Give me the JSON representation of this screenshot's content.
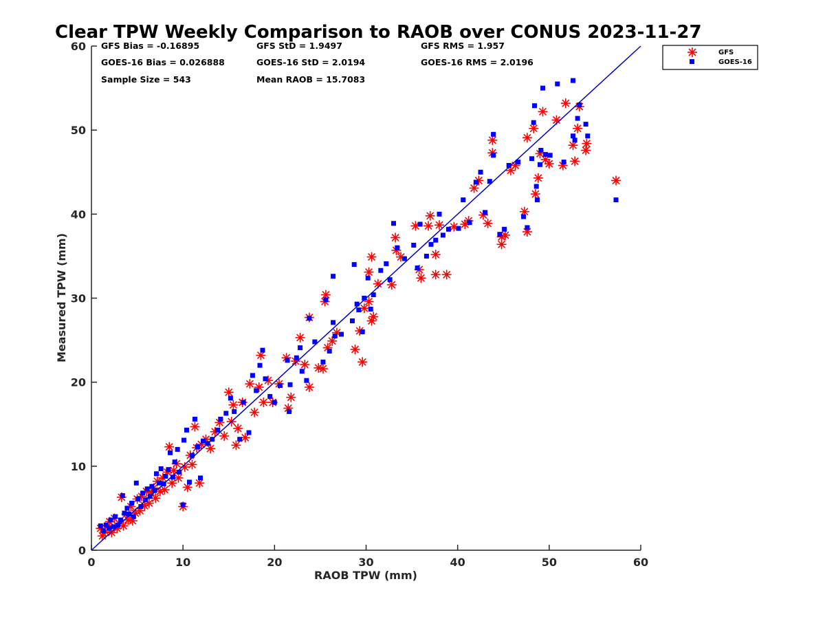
{
  "chart_data": {
    "type": "scatter",
    "title": "Clear TPW Weekly Comparison to RAOB over CONUS 2023-11-27",
    "xlabel": "RAOB TPW (mm)",
    "ylabel": "Measured TPW (mm)",
    "xlim": [
      0,
      60
    ],
    "ylim": [
      0,
      60
    ],
    "xticks": [
      "0",
      "10",
      "20",
      "30",
      "40",
      "50",
      "60"
    ],
    "yticks": [
      "0",
      "10",
      "20",
      "30",
      "40",
      "50",
      "60"
    ],
    "grid": false,
    "legend_position": "top-right outside",
    "stats": [
      "GFS Bias = -0.16895",
      "GFS StD = 1.9497",
      "GFS RMS = 1.957",
      "GOES-16 Bias = 0.026888",
      "GOES-16 StD = 2.0194",
      "GOES-16 RMS = 2.0196",
      "Sample Size = 543",
      "Mean RAOB = 15.7083"
    ],
    "reference_line": {
      "x": [
        0,
        60
      ],
      "y": [
        0,
        60
      ],
      "color": "#0000cc"
    },
    "series": [
      {
        "name": "GFS",
        "marker": "asterisk",
        "color": "#ff0000",
        "points": [
          [
            1.0,
            2.6
          ],
          [
            1.2,
            1.7
          ],
          [
            1.5,
            2.2
          ],
          [
            1.8,
            2.9
          ],
          [
            2.0,
            3.4
          ],
          [
            2.2,
            2.1
          ],
          [
            2.5,
            3.8
          ],
          [
            2.8,
            2.6
          ],
          [
            3.0,
            3.2
          ],
          [
            3.3,
            6.3
          ],
          [
            3.5,
            2.9
          ],
          [
            3.8,
            4.3
          ],
          [
            4.0,
            3.6
          ],
          [
            4.3,
            5.2
          ],
          [
            4.5,
            3.5
          ],
          [
            4.8,
            4.4
          ],
          [
            5.0,
            6.1
          ],
          [
            5.3,
            4.7
          ],
          [
            5.5,
            6.4
          ],
          [
            5.8,
            5.3
          ],
          [
            6.0,
            7.0
          ],
          [
            6.3,
            5.6
          ],
          [
            6.5,
            6.9
          ],
          [
            6.8,
            7.4
          ],
          [
            7.0,
            6.2
          ],
          [
            7.2,
            8.2
          ],
          [
            7.5,
            7.0
          ],
          [
            7.8,
            8.6
          ],
          [
            8.0,
            7.2
          ],
          [
            8.3,
            9.3
          ],
          [
            8.5,
            12.3
          ],
          [
            8.8,
            8.0
          ],
          [
            9.0,
            9.5
          ],
          [
            9.3,
            10.3
          ],
          [
            9.5,
            8.6
          ],
          [
            10.0,
            5.2
          ],
          [
            10.2,
            9.9
          ],
          [
            10.5,
            7.5
          ],
          [
            10.8,
            11.3
          ],
          [
            11.0,
            10.2
          ],
          [
            11.3,
            14.7
          ],
          [
            11.5,
            12.2
          ],
          [
            11.8,
            8.0
          ],
          [
            12.0,
            12.6
          ],
          [
            12.5,
            13.2
          ],
          [
            13.0,
            12.1
          ],
          [
            13.5,
            14.1
          ],
          [
            14.0,
            15.2
          ],
          [
            14.5,
            13.6
          ],
          [
            15.0,
            18.8
          ],
          [
            15.3,
            15.3
          ],
          [
            15.5,
            17.3
          ],
          [
            15.8,
            12.5
          ],
          [
            16.0,
            14.5
          ],
          [
            16.5,
            17.6
          ],
          [
            16.8,
            13.4
          ],
          [
            17.3,
            19.8
          ],
          [
            17.8,
            16.4
          ],
          [
            18.3,
            19.4
          ],
          [
            18.5,
            23.2
          ],
          [
            18.8,
            17.6
          ],
          [
            19.3,
            20.2
          ],
          [
            19.8,
            17.6
          ],
          [
            20.5,
            19.8
          ],
          [
            21.3,
            22.9
          ],
          [
            21.8,
            18.2
          ],
          [
            21.5,
            16.9
          ],
          [
            22.3,
            22.5
          ],
          [
            22.8,
            25.3
          ],
          [
            23.3,
            22.1
          ],
          [
            23.8,
            19.4
          ],
          [
            23.8,
            27.7
          ],
          [
            24.8,
            21.7
          ],
          [
            25.3,
            21.6
          ],
          [
            25.8,
            24.1
          ],
          [
            26.3,
            24.9
          ],
          [
            26.8,
            25.9
          ],
          [
            25.5,
            29.6
          ],
          [
            25.6,
            30.4
          ],
          [
            28.8,
            23.9
          ],
          [
            29.3,
            26.1
          ],
          [
            29.6,
            22.4
          ],
          [
            29.8,
            28.8
          ],
          [
            30.3,
            29.6
          ],
          [
            30.3,
            33.1
          ],
          [
            30.6,
            27.3
          ],
          [
            30.8,
            27.8
          ],
          [
            30.6,
            34.9
          ],
          [
            31.3,
            31.7
          ],
          [
            32.8,
            31.6
          ],
          [
            33.2,
            37.2
          ],
          [
            33.3,
            35.7
          ],
          [
            33.8,
            34.9
          ],
          [
            35.4,
            38.6
          ],
          [
            35.8,
            33.4
          ],
          [
            36.0,
            32.4
          ],
          [
            36.8,
            38.6
          ],
          [
            37.0,
            39.8
          ],
          [
            37.6,
            35.2
          ],
          [
            38.0,
            38.7
          ],
          [
            37.6,
            32.8
          ],
          [
            38.8,
            32.8
          ],
          [
            39.6,
            38.5
          ],
          [
            40.8,
            38.8
          ],
          [
            41.2,
            39.2
          ],
          [
            41.8,
            43.1
          ],
          [
            42.3,
            44.0
          ],
          [
            42.8,
            39.9
          ],
          [
            43.3,
            38.9
          ],
          [
            43.8,
            47.3
          ],
          [
            43.8,
            48.8
          ],
          [
            44.8,
            36.4
          ],
          [
            44.8,
            37.3
          ],
          [
            45.2,
            37.5
          ],
          [
            45.8,
            45.2
          ],
          [
            46.3,
            45.8
          ],
          [
            47.3,
            40.3
          ],
          [
            47.6,
            49.1
          ],
          [
            47.6,
            37.9
          ],
          [
            48.3,
            50.2
          ],
          [
            48.5,
            42.4
          ],
          [
            48.8,
            44.3
          ],
          [
            49.0,
            47.2
          ],
          [
            49.3,
            52.2
          ],
          [
            49.6,
            46.5
          ],
          [
            50.0,
            46.0
          ],
          [
            50.8,
            51.2
          ],
          [
            51.5,
            45.8
          ],
          [
            51.8,
            53.2
          ],
          [
            52.6,
            48.2
          ],
          [
            52.8,
            46.3
          ],
          [
            53.1,
            50.2
          ],
          [
            53.3,
            52.8
          ],
          [
            54.0,
            47.6
          ],
          [
            54.1,
            48.4
          ],
          [
            57.3,
            44.0
          ]
        ]
      },
      {
        "name": "GOES-16",
        "marker": "square",
        "color": "#0000ff",
        "points": [
          [
            1.0,
            2.9
          ],
          [
            1.3,
            2.3
          ],
          [
            1.6,
            3.0
          ],
          [
            1.9,
            2.6
          ],
          [
            2.1,
            3.6
          ],
          [
            2.4,
            2.8
          ],
          [
            2.6,
            4.0
          ],
          [
            2.9,
            3.0
          ],
          [
            3.2,
            3.6
          ],
          [
            3.4,
            6.5
          ],
          [
            3.6,
            4.4
          ],
          [
            3.9,
            5.0
          ],
          [
            4.1,
            4.3
          ],
          [
            4.4,
            5.6
          ],
          [
            4.6,
            4.0
          ],
          [
            4.9,
            8.0
          ],
          [
            5.1,
            6.1
          ],
          [
            5.4,
            5.2
          ],
          [
            5.6,
            6.8
          ],
          [
            5.9,
            6.0
          ],
          [
            6.1,
            7.3
          ],
          [
            6.4,
            6.4
          ],
          [
            6.6,
            7.6
          ],
          [
            6.9,
            7.1
          ],
          [
            7.1,
            9.1
          ],
          [
            7.4,
            8.0
          ],
          [
            7.6,
            9.7
          ],
          [
            7.9,
            7.9
          ],
          [
            8.1,
            8.8
          ],
          [
            8.4,
            9.6
          ],
          [
            8.6,
            11.6
          ],
          [
            8.9,
            8.7
          ],
          [
            9.1,
            10.5
          ],
          [
            9.4,
            12.0
          ],
          [
            9.6,
            9.3
          ],
          [
            10.0,
            5.4
          ],
          [
            10.1,
            13.1
          ],
          [
            10.4,
            14.3
          ],
          [
            10.7,
            8.1
          ],
          [
            11.0,
            11.3
          ],
          [
            11.3,
            15.6
          ],
          [
            11.6,
            12.3
          ],
          [
            11.9,
            8.6
          ],
          [
            12.2,
            13.0
          ],
          [
            12.7,
            12.7
          ],
          [
            13.2,
            13.2
          ],
          [
            13.8,
            14.3
          ],
          [
            14.1,
            15.6
          ],
          [
            14.7,
            16.3
          ],
          [
            15.2,
            18.1
          ],
          [
            15.6,
            16.5
          ],
          [
            16.2,
            13.2
          ],
          [
            16.6,
            17.6
          ],
          [
            17.2,
            14.0
          ],
          [
            17.6,
            20.8
          ],
          [
            18.0,
            19.0
          ],
          [
            18.4,
            22.0
          ],
          [
            18.7,
            23.8
          ],
          [
            19.0,
            20.4
          ],
          [
            19.5,
            18.3
          ],
          [
            20.0,
            17.6
          ],
          [
            20.6,
            19.6
          ],
          [
            21.4,
            22.6
          ],
          [
            21.6,
            16.5
          ],
          [
            21.7,
            19.7
          ],
          [
            22.4,
            22.9
          ],
          [
            22.8,
            24.1
          ],
          [
            23.0,
            21.3
          ],
          [
            23.5,
            20.2
          ],
          [
            23.8,
            27.6
          ],
          [
            24.4,
            24.8
          ],
          [
            25.3,
            22.4
          ],
          [
            25.6,
            29.8
          ],
          [
            26.0,
            23.7
          ],
          [
            26.4,
            32.6
          ],
          [
            26.4,
            27.1
          ],
          [
            26.6,
            25.5
          ],
          [
            27.3,
            25.7
          ],
          [
            28.5,
            27.3
          ],
          [
            28.7,
            34.0
          ],
          [
            29.0,
            29.3
          ],
          [
            29.2,
            28.6
          ],
          [
            29.6,
            26.0
          ],
          [
            29.8,
            30.0
          ],
          [
            30.2,
            32.4
          ],
          [
            30.5,
            28.7
          ],
          [
            30.8,
            30.4
          ],
          [
            31.6,
            33.3
          ],
          [
            32.2,
            34.1
          ],
          [
            32.6,
            32.2
          ],
          [
            33.0,
            38.9
          ],
          [
            33.4,
            36.0
          ],
          [
            34.2,
            34.7
          ],
          [
            35.2,
            36.3
          ],
          [
            35.6,
            33.6
          ],
          [
            35.9,
            38.8
          ],
          [
            36.6,
            35.0
          ],
          [
            37.1,
            36.4
          ],
          [
            37.6,
            36.9
          ],
          [
            38.0,
            40.0
          ],
          [
            38.4,
            37.5
          ],
          [
            39.0,
            38.2
          ],
          [
            40.1,
            38.3
          ],
          [
            40.6,
            41.7
          ],
          [
            41.3,
            39.0
          ],
          [
            42.0,
            43.8
          ],
          [
            42.5,
            45.0
          ],
          [
            43.0,
            40.2
          ],
          [
            43.5,
            43.9
          ],
          [
            43.9,
            47.0
          ],
          [
            43.9,
            49.5
          ],
          [
            44.6,
            37.6
          ],
          [
            45.1,
            38.2
          ],
          [
            45.6,
            45.8
          ],
          [
            46.6,
            46.2
          ],
          [
            47.2,
            39.7
          ],
          [
            47.6,
            38.4
          ],
          [
            48.1,
            46.6
          ],
          [
            48.3,
            50.9
          ],
          [
            48.4,
            52.9
          ],
          [
            48.6,
            43.3
          ],
          [
            48.7,
            41.7
          ],
          [
            49.0,
            45.9
          ],
          [
            49.1,
            47.6
          ],
          [
            49.6,
            47.1
          ],
          [
            49.3,
            55.0
          ],
          [
            50.1,
            47.0
          ],
          [
            50.9,
            55.5
          ],
          [
            51.6,
            46.2
          ],
          [
            52.6,
            49.3
          ],
          [
            52.8,
            48.8
          ],
          [
            52.6,
            55.9
          ],
          [
            53.1,
            51.4
          ],
          [
            53.3,
            53.0
          ],
          [
            54.0,
            50.7
          ],
          [
            54.2,
            49.3
          ],
          [
            57.3,
            41.7
          ]
        ]
      }
    ]
  }
}
